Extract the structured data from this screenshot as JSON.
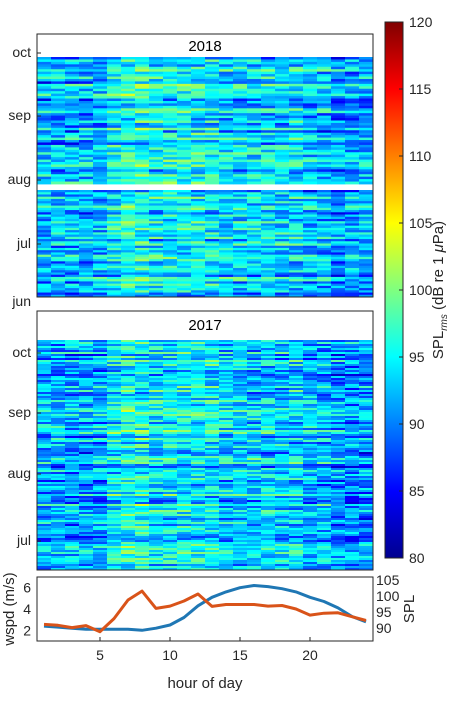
{
  "chart_data": [
    {
      "type": "heatmap",
      "title": "2018",
      "xlim": [
        0.5,
        24.5
      ],
      "rows": 100,
      "cols": 24,
      "ytick_labels": [
        "oct",
        "sep",
        "aug",
        "jul",
        "jun"
      ],
      "segments": [
        "aug-oct",
        "jun-aug"
      ]
    },
    {
      "type": "heatmap",
      "title": "2017",
      "xlim": [
        0.5,
        24.5
      ],
      "rows": 115,
      "cols": 24,
      "ytick_labels": [
        "oct",
        "sep",
        "aug",
        "jul"
      ]
    },
    {
      "type": "line",
      "x": [
        1,
        2,
        3,
        4,
        5,
        6,
        7,
        8,
        9,
        10,
        11,
        12,
        13,
        14,
        15,
        16,
        17,
        18,
        19,
        20,
        21,
        22,
        23,
        24
      ],
      "xlim": [
        0.5,
        24.5
      ],
      "xticks": [
        5,
        10,
        15,
        20
      ],
      "xlabel": "hour of day",
      "series": [
        {
          "name": "wspd (m/s)",
          "axis": "left",
          "color": "#1f77b4",
          "ylim": [
            1,
            7
          ],
          "yticks": [
            2,
            4,
            6
          ],
          "values": [
            2.4,
            2.3,
            2.2,
            2.1,
            2.1,
            2.1,
            2.1,
            2.0,
            2.2,
            2.5,
            3.2,
            4.3,
            5.1,
            5.6,
            6.0,
            6.2,
            6.1,
            5.9,
            5.6,
            5.1,
            4.7,
            4.1,
            3.3,
            2.8
          ]
        },
        {
          "name": "SPL",
          "axis": "right",
          "color": "#d95319",
          "ylim": [
            86,
            106
          ],
          "yticks": [
            90,
            95,
            100,
            105
          ],
          "values": [
            91.2,
            90.9,
            90.2,
            90.8,
            88.9,
            93.0,
            98.8,
            101.6,
            96.2,
            96.9,
            98.5,
            100.7,
            96.8,
            97.4,
            97.4,
            97.4,
            96.9,
            97.1,
            96.0,
            94.1,
            94.7,
            94.8,
            93.6,
            92.4
          ]
        }
      ]
    },
    {
      "type": "colorbar",
      "ylabel_main": "SPL",
      "ylabel_sub": "rms",
      "ylabel_rest": " (dB re 1 ",
      "ylabel_mu": "μ",
      "ylabel_end": "Pa)",
      "clim": [
        80,
        120
      ],
      "ticks": [
        80,
        85,
        90,
        95,
        100,
        105,
        110,
        115,
        120
      ]
    }
  ]
}
